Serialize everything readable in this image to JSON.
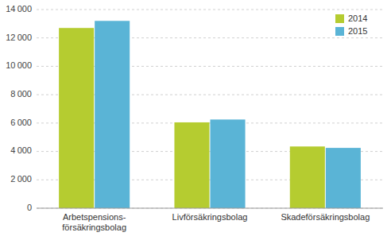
{
  "chart_data": {
    "type": "bar",
    "categories": [
      "Arbetspensions-\nförsäkringsbolag",
      "Livförsäkringsbolag",
      "Skadeförsäkringsbolag"
    ],
    "series": [
      {
        "name": "2014",
        "color": "#b5cc30",
        "values": [
          12700,
          6050,
          4350
        ]
      },
      {
        "name": "2015",
        "color": "#5ab4d6",
        "values": [
          13200,
          6250,
          4250
        ]
      }
    ],
    "ylim": [
      0,
      14000
    ],
    "yticks": [
      0,
      {
        "value": 2000,
        "label": "2 000"
      },
      {
        "value": 4000,
        "label": "4 000"
      },
      {
        "value": 6000,
        "label": "6 000"
      },
      {
        "value": 8000,
        "label": "8 000"
      },
      {
        "value": 10000,
        "label": "10 000"
      },
      {
        "value": 12000,
        "label": "12 000"
      },
      {
        "value": 14000,
        "label": "14 000"
      }
    ],
    "grid": true,
    "legend": "upper right"
  }
}
